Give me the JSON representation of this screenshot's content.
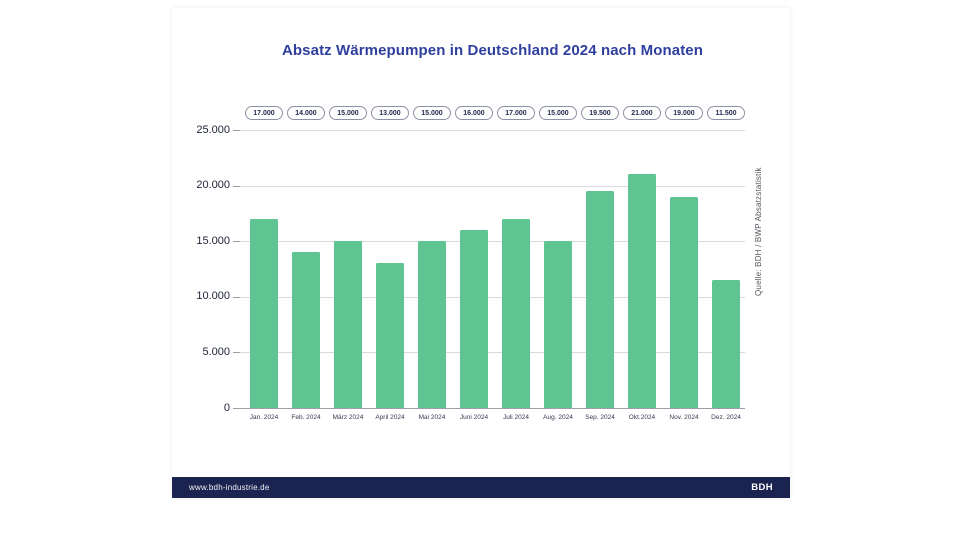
{
  "chart_data": {
    "type": "bar",
    "title": "Absatz Wärmepumpen in Deutschland 2024 nach Monaten",
    "categories": [
      "Jan. 2024",
      "Feb. 2024",
      "März 2024",
      "April 2024",
      "Mai 2024",
      "Juni 2024",
      "Juli 2024",
      "Aug. 2024",
      "Sep. 2024",
      "Okt.2024",
      "Nov. 2024",
      "Dez. 2024"
    ],
    "values": [
      17000,
      14000,
      15000,
      13000,
      15000,
      16000,
      17000,
      15000,
      19500,
      21000,
      19000,
      11500
    ],
    "value_labels": [
      "17.000",
      "14.000",
      "15.000",
      "13.000",
      "15.000",
      "16.000",
      "17.000",
      "15.000",
      "19.500",
      "21.000",
      "19.000",
      "11.500"
    ],
    "xlabel": "",
    "ylabel": "",
    "ylim": [
      0,
      25000
    ],
    "ytick_values": [
      0,
      5000,
      10000,
      15000,
      20000,
      25000
    ],
    "ytick_labels": [
      "0",
      "5.000",
      "10.000",
      "15.000",
      "20.000",
      "25.000"
    ],
    "grid": true,
    "legend": false,
    "source": "Quelle: BDH / BWP Absatzstatistik"
  },
  "footer": {
    "url": "www.bdh-industrie.de",
    "logo": "BDH"
  },
  "colors": {
    "title": "#2e3f9e",
    "bar": "#5ec592",
    "grid": "#d9dade",
    "axis": "#9aa0a8",
    "pill_border": "#8d93a5",
    "pill_text": "#232a4d",
    "footer_bg": "#1b2350"
  }
}
